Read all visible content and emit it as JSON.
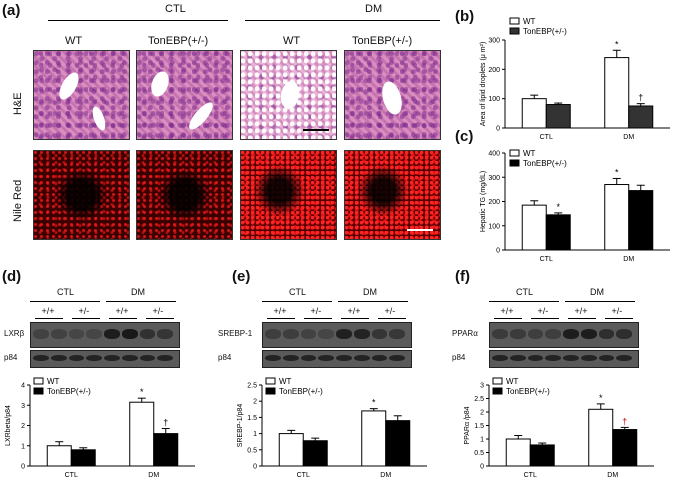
{
  "panels": {
    "a": {
      "letter": "(a)",
      "groups": [
        "CTL",
        "DM"
      ],
      "columns": [
        "WT",
        "TonEBP(+/-)",
        "WT",
        "TonEBP(+/-)"
      ],
      "rows": [
        "H&E",
        "Nile Red"
      ]
    },
    "b": {
      "letter": "(b)"
    },
    "c": {
      "letter": "(c)"
    },
    "d": {
      "letter": "(d)",
      "blot_labels": [
        "LXRβ",
        "p84"
      ],
      "groups": [
        "CTL",
        "DM"
      ],
      "genotypes": [
        "+/+",
        "+/-",
        "+/+",
        "+/-"
      ]
    },
    "e": {
      "letter": "(e)",
      "blot_labels": [
        "SREBP-1",
        "p84"
      ],
      "groups": [
        "CTL",
        "DM"
      ],
      "genotypes": [
        "+/+",
        "+/-",
        "+/+",
        "+/-"
      ]
    },
    "f": {
      "letter": "(f)",
      "blot_labels": [
        "PPARα",
        "p84"
      ],
      "groups": [
        "CTL",
        "DM"
      ],
      "genotypes": [
        "+/+",
        "+/-",
        "+/+",
        "+/-"
      ]
    }
  },
  "chart_data": [
    {
      "id": "b",
      "type": "bar",
      "categories": [
        "CTL",
        "DM"
      ],
      "ylabel": "Area of lipid droplets (μ m²)",
      "ylim": [
        0,
        300
      ],
      "yticks": [
        "0",
        "100",
        "200",
        "300"
      ],
      "series": [
        {
          "name": "WT",
          "values": [
            100,
            240
          ],
          "errors": [
            12,
            25
          ],
          "color": "#ffffff"
        },
        {
          "name": "TonEBP(+/-)",
          "values": [
            80,
            75
          ],
          "errors": [
            5,
            8
          ],
          "color": "#333333"
        }
      ],
      "annotations": [
        {
          "text": "*",
          "series": 0,
          "category": 1
        },
        {
          "text": "†",
          "series": 1,
          "category": 1
        }
      ]
    },
    {
      "id": "c",
      "type": "bar",
      "categories": [
        "CTL",
        "DM"
      ],
      "ylabel": "Hepatic TG (mg/dL)",
      "ylim": [
        0,
        400
      ],
      "yticks": [
        "0",
        "100",
        "200",
        "300",
        "400"
      ],
      "series": [
        {
          "name": "WT",
          "values": [
            185,
            270
          ],
          "errors": [
            18,
            25
          ],
          "color": "#ffffff"
        },
        {
          "name": "TonEBP(+/-)",
          "values": [
            145,
            245
          ],
          "errors": [
            8,
            22
          ],
          "color": "#000000"
        }
      ],
      "annotations": [
        {
          "text": "*",
          "series": 1,
          "category": 0
        },
        {
          "text": "*",
          "series": 0,
          "category": 1
        }
      ]
    },
    {
      "id": "d",
      "type": "bar",
      "categories": [
        "CTL",
        "DM"
      ],
      "ylabel": "LXRbeta/p84",
      "ylim": [
        0,
        4
      ],
      "yticks": [
        "0",
        "1",
        "2",
        "3",
        "4"
      ],
      "series": [
        {
          "name": "WT",
          "values": [
            1.0,
            3.15
          ],
          "errors": [
            0.2,
            0.2
          ],
          "color": "#ffffff"
        },
        {
          "name": "TonEBP(+/-)",
          "values": [
            0.8,
            1.6
          ],
          "errors": [
            0.1,
            0.25
          ],
          "color": "#000000"
        }
      ],
      "annotations": [
        {
          "text": "*",
          "series": 0,
          "category": 1
        },
        {
          "text": "†",
          "series": 1,
          "category": 1
        }
      ]
    },
    {
      "id": "e",
      "type": "bar",
      "categories": [
        "CTL",
        "DM"
      ],
      "ylabel": "SREBP-1/p84",
      "ylim": [
        0,
        2.5
      ],
      "yticks": [
        "0",
        "0.5",
        "1",
        "1.5",
        "2",
        "2.5"
      ],
      "series": [
        {
          "name": "WT",
          "values": [
            1.0,
            1.7
          ],
          "errors": [
            0.1,
            0.07
          ],
          "color": "#ffffff"
        },
        {
          "name": "TonEBP(+/-)",
          "values": [
            0.78,
            1.4
          ],
          "errors": [
            0.08,
            0.15
          ],
          "color": "#000000"
        }
      ],
      "annotations": [
        {
          "text": "*",
          "series": 0,
          "category": 1
        }
      ]
    },
    {
      "id": "f",
      "type": "bar",
      "categories": [
        "CTL",
        "DM"
      ],
      "ylabel": "PPARα /p84",
      "ylim": [
        0,
        3
      ],
      "yticks": [
        "0",
        "0.5",
        "1",
        "1.5",
        "2",
        "2.5",
        "3"
      ],
      "series": [
        {
          "name": "WT",
          "values": [
            1.0,
            2.1
          ],
          "errors": [
            0.13,
            0.2
          ],
          "color": "#ffffff"
        },
        {
          "name": "TonEBP(+/-)",
          "values": [
            0.78,
            1.35
          ],
          "errors": [
            0.07,
            0.08
          ],
          "color": "#000000"
        }
      ],
      "annotations": [
        {
          "text": "*",
          "series": 0,
          "category": 1
        },
        {
          "text": "†",
          "series": 1,
          "category": 1,
          "color": "#c00000"
        }
      ]
    }
  ]
}
